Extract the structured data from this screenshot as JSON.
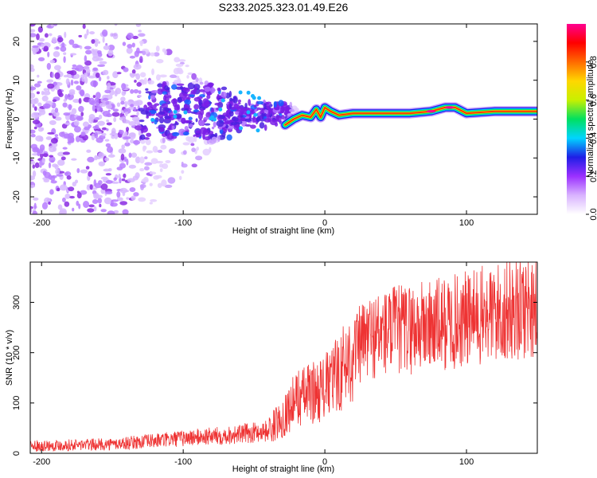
{
  "chart_data": [
    {
      "type": "heatmap",
      "title": "S233.2025.323.01.49.E26",
      "xlabel": "Height of straight line (km)",
      "ylabel": "Frequency (Hz)",
      "xlim": [
        -208,
        150
      ],
      "ylim": [
        -24.5,
        24.5
      ],
      "xticks": [
        -200,
        -100,
        0,
        100
      ],
      "yticks": [
        -20,
        -10,
        0,
        10,
        20
      ],
      "colorbar": {
        "label": "Normalized spectral amplitude",
        "range": [
          0,
          1
        ],
        "ticks": [
          "0.0",
          "0.2",
          "0.4",
          "0.6",
          "0.8"
        ],
        "tick_values": [
          0.0,
          0.2,
          0.4,
          0.6,
          0.8
        ],
        "colors": [
          "#ffffff",
          "#d9b3ff",
          "#9b30ff",
          "#1e1ee6",
          "#00d5ff",
          "#00e060",
          "#c8f000",
          "#ffd700",
          "#ff6a00",
          "#ff0000",
          "#ff0090"
        ]
      },
      "ridge": [
        {
          "x": -28,
          "y": -1.5
        },
        {
          "x": -22,
          "y": 0
        },
        {
          "x": -16,
          "y": 1
        },
        {
          "x": -10,
          "y": 0.5
        },
        {
          "x": -6,
          "y": 2.5
        },
        {
          "x": -3,
          "y": 0.5
        },
        {
          "x": 0,
          "y": 3
        },
        {
          "x": 4,
          "y": 2
        },
        {
          "x": 10,
          "y": 1
        },
        {
          "x": 20,
          "y": 1.5
        },
        {
          "x": 40,
          "y": 1.5
        },
        {
          "x": 60,
          "y": 1.5
        },
        {
          "x": 75,
          "y": 2
        },
        {
          "x": 85,
          "y": 3
        },
        {
          "x": 92,
          "y": 3
        },
        {
          "x": 100,
          "y": 1.5
        },
        {
          "x": 120,
          "y": 2
        },
        {
          "x": 150,
          "y": 2
        }
      ]
    },
    {
      "type": "line",
      "xlabel": "Height of straight line (km)",
      "ylabel": "SNR (10 * v/v)",
      "xlim": [
        -208,
        150
      ],
      "ylim": [
        0,
        380
      ],
      "xticks": [
        -200,
        -100,
        0,
        100
      ],
      "yticks": [
        0,
        100,
        200,
        300
      ],
      "color": "#ee3333",
      "trend": [
        {
          "x": -208,
          "y": 15
        },
        {
          "x": -150,
          "y": 18
        },
        {
          "x": -120,
          "y": 25
        },
        {
          "x": -90,
          "y": 32
        },
        {
          "x": -60,
          "y": 38
        },
        {
          "x": -40,
          "y": 45
        },
        {
          "x": -30,
          "y": 70
        },
        {
          "x": -20,
          "y": 110
        },
        {
          "x": -10,
          "y": 120
        },
        {
          "x": 0,
          "y": 130
        },
        {
          "x": 10,
          "y": 160
        },
        {
          "x": 20,
          "y": 200
        },
        {
          "x": 30,
          "y": 230
        },
        {
          "x": 50,
          "y": 245
        },
        {
          "x": 80,
          "y": 255
        },
        {
          "x": 100,
          "y": 265
        },
        {
          "x": 125,
          "y": 280
        },
        {
          "x": 150,
          "y": 300
        }
      ]
    }
  ]
}
